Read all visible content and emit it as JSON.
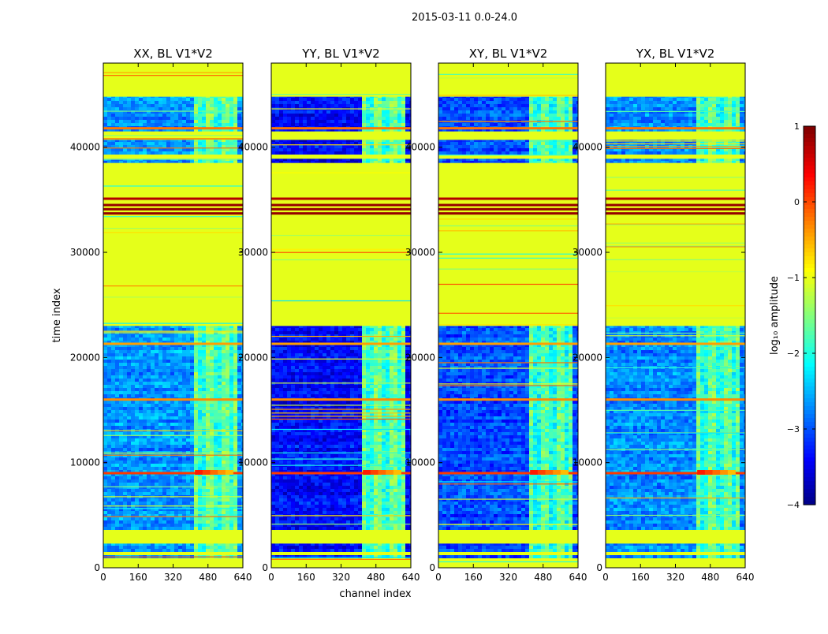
{
  "figure": {
    "suptitle": "2015-03-11 0.0-24.0",
    "ylabel": "time index",
    "xlabel": "channel index"
  },
  "chart_data": {
    "type": "heatmap",
    "xlim": [
      0,
      640
    ],
    "ylim": [
      0,
      48000
    ],
    "xticks": [
      0,
      160,
      320,
      480,
      640
    ],
    "yticks": [
      0,
      10000,
      20000,
      30000,
      40000
    ],
    "panels": [
      {
        "title": "XX, BL V1*V2",
        "noise_level": 0.27,
        "band_level": 0.44
      },
      {
        "title": "YY, BL V1*V2",
        "noise_level": 0.13,
        "band_level": 0.44
      },
      {
        "title": "XY, BL V1*V2",
        "noise_level": 0.2,
        "band_level": 0.42
      },
      {
        "title": "YX, BL V1*V2",
        "noise_level": 0.26,
        "band_level": 0.43
      }
    ],
    "flagged_time_ranges": [
      [
        0,
        900
      ],
      [
        1200,
        1500
      ],
      [
        2300,
        3600
      ],
      [
        23000,
        38500
      ],
      [
        38900,
        39300
      ],
      [
        40700,
        41500
      ],
      [
        44800,
        48000
      ]
    ],
    "flag_level": 0.6,
    "bright_channel_range": [
      400,
      600
    ],
    "hot_lines": [
      {
        "t": 9000,
        "level": 0.82
      },
      {
        "t": 16000,
        "level": 0.74
      },
      {
        "t": 21300,
        "level": 0.72
      },
      {
        "t": 41800,
        "level": 0.76
      },
      {
        "t": 33700,
        "level": 0.98
      },
      {
        "t": 34100,
        "level": 0.98
      },
      {
        "t": 34500,
        "level": 0.98
      },
      {
        "t": 35100,
        "level": 0.95
      }
    ],
    "colorbar": {
      "label": "log₁₀ amplitude",
      "range": [
        -4,
        1
      ],
      "ticks": [
        1,
        0,
        -1,
        -2,
        -3,
        -4
      ],
      "tick_labels": [
        "1",
        "0",
        "−1",
        "−2",
        "−3",
        "−4"
      ],
      "colormap": "jet"
    }
  }
}
